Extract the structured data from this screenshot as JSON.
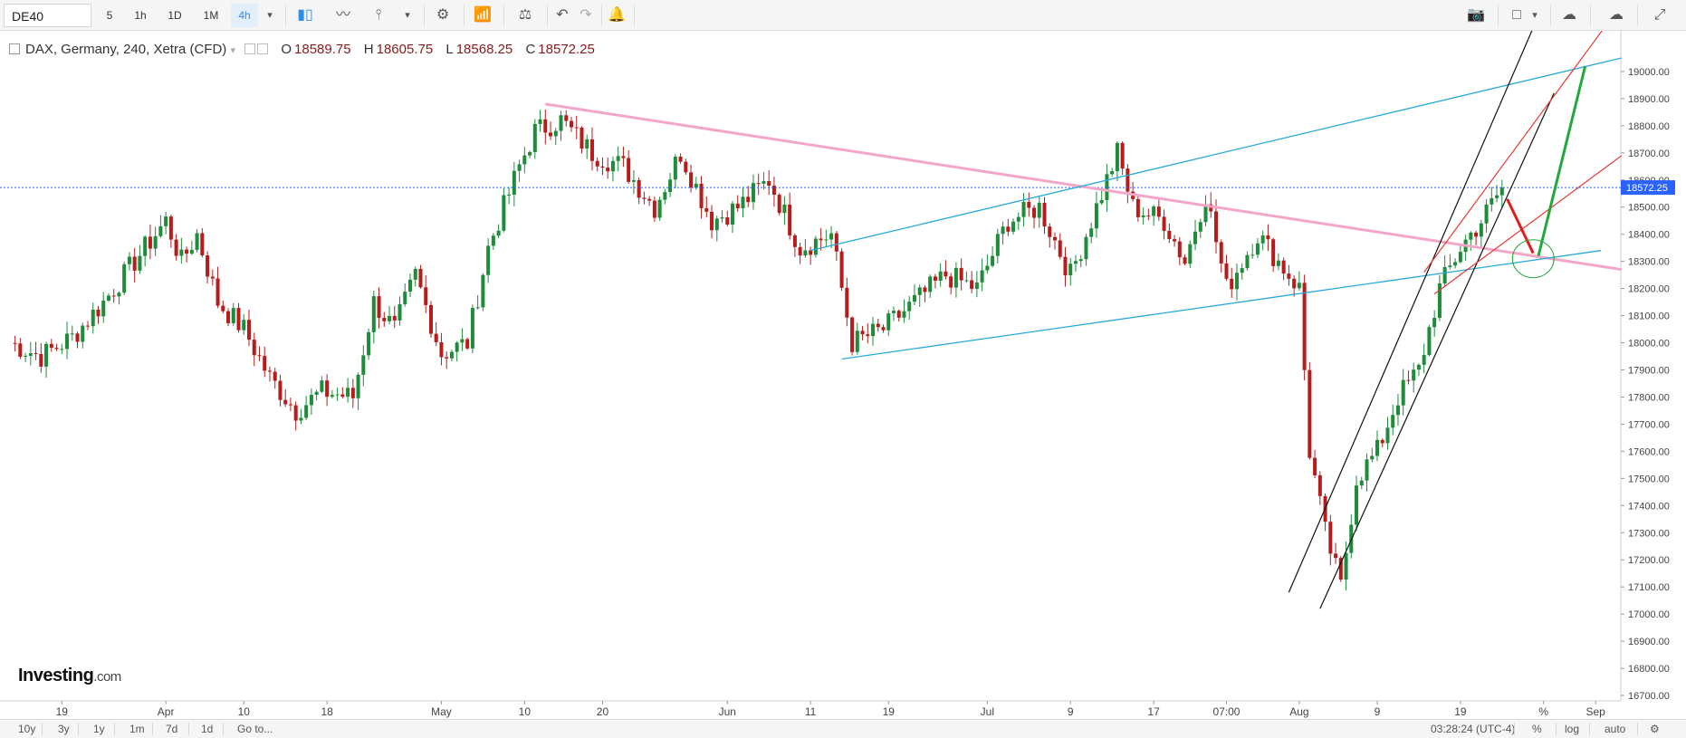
{
  "toolbar": {
    "symbol": "DE40",
    "intervals": [
      "5",
      "1h",
      "1D",
      "1M",
      "4h"
    ],
    "active_interval": "4h"
  },
  "legend": {
    "title": "DAX, Germany, 240, Xetra (CFD)",
    "open_label": "O",
    "open": "18589.75",
    "high_label": "H",
    "high": "18605.75",
    "low_label": "L",
    "low": "18568.25",
    "close_label": "C",
    "close": "18572.25"
  },
  "price_tag": "18572.25",
  "bottom_bar": {
    "ranges": [
      "10y",
      "3y",
      "1y",
      "1m",
      "7d",
      "1d",
      "Go to..."
    ],
    "clock": "03:28:24 (UTC-4)",
    "percent_label": "%",
    "log_label": "log",
    "auto_label": "auto"
  },
  "logo": {
    "main": "Investing",
    "suffix": ".com"
  },
  "colors": {
    "up": "#1e8c3a",
    "down": "#b71c1c",
    "pink_trend": "#f4a6c8",
    "channel_blue": "#29a9d9",
    "black_channel": "#111111",
    "red_channel": "#e53935",
    "last_price": "#2962ff",
    "arrow_red": "#e11d1d",
    "arrow_green": "#22a83a"
  },
  "chart_data": {
    "type": "candlestick",
    "y_ticks": [
      16700,
      16800,
      16900,
      17000,
      17100,
      17200,
      17300,
      17400,
      17500,
      17600,
      17700,
      17800,
      17900,
      18000,
      18100,
      18200,
      18300,
      18400,
      18500,
      18600,
      18700,
      18800,
      18900,
      19000
    ],
    "y_tick_labels": [
      "16700.00",
      "16800.00",
      "16900.00",
      "17000.00",
      "17100.00",
      "17200.00",
      "17300.00",
      "17400.00",
      "17500.00",
      "17600.00",
      "17700.00",
      "17800.00",
      "17900.00",
      "18000.00",
      "18100.00",
      "18200.00",
      "18300.00",
      "18400.00",
      "18500.00",
      "18600.00",
      "18700.00",
      "18800.00",
      "18900.00",
      "19000.00"
    ],
    "ylim": [
      16680,
      19150
    ],
    "x_labels": [
      "19",
      "Apr",
      "10",
      "18",
      "May",
      "10",
      "20",
      "Jun",
      "11",
      "19",
      "Jul",
      "9",
      "17",
      "07:00",
      "Aug",
      "9",
      "19",
      "%",
      "Sep"
    ],
    "x_label_bars": [
      10,
      30,
      45,
      61,
      83,
      99,
      114,
      138,
      154,
      169,
      188,
      204,
      220,
      234,
      248,
      263,
      279,
      295,
      305
    ],
    "last_price": 18572.25,
    "last_bar": 287,
    "n_bars": 310,
    "anchors": [
      [
        0,
        18000
      ],
      [
        6,
        17950
      ],
      [
        12,
        18020
      ],
      [
        18,
        18150
      ],
      [
        24,
        18300
      ],
      [
        30,
        18450
      ],
      [
        33,
        18300
      ],
      [
        36,
        18400
      ],
      [
        40,
        18150
      ],
      [
        45,
        18050
      ],
      [
        50,
        17870
      ],
      [
        55,
        17750
      ],
      [
        60,
        17820
      ],
      [
        66,
        17800
      ],
      [
        70,
        18150
      ],
      [
        74,
        18050
      ],
      [
        78,
        18250
      ],
      [
        83,
        17960
      ],
      [
        88,
        18000
      ],
      [
        92,
        18350
      ],
      [
        98,
        18650
      ],
      [
        101,
        18780
      ],
      [
        106,
        18820
      ],
      [
        112,
        18700
      ],
      [
        118,
        18650
      ],
      [
        124,
        18500
      ],
      [
        129,
        18700
      ],
      [
        135,
        18450
      ],
      [
        140,
        18500
      ],
      [
        146,
        18600
      ],
      [
        152,
        18350
      ],
      [
        158,
        18400
      ],
      [
        162,
        18000
      ],
      [
        168,
        18050
      ],
      [
        174,
        18150
      ],
      [
        180,
        18250
      ],
      [
        186,
        18200
      ],
      [
        192,
        18450
      ],
      [
        198,
        18500
      ],
      [
        204,
        18250
      ],
      [
        210,
        18550
      ],
      [
        213,
        18700
      ],
      [
        216,
        18500
      ],
      [
        222,
        18450
      ],
      [
        226,
        18300
      ],
      [
        230,
        18550
      ],
      [
        234,
        18200
      ],
      [
        240,
        18400
      ],
      [
        244,
        18300
      ],
      [
        248,
        18200
      ],
      [
        250,
        17600
      ],
      [
        253,
        17300
      ],
      [
        256,
        17100
      ],
      [
        259,
        17500
      ],
      [
        263,
        17600
      ],
      [
        267,
        17800
      ],
      [
        271,
        17900
      ],
      [
        275,
        18200
      ],
      [
        279,
        18350
      ],
      [
        283,
        18450
      ],
      [
        287,
        18572
      ]
    ],
    "annotations": {
      "pink_trend": {
        "from": [
          103,
          18880
        ],
        "to": [
          310,
          18270
        ]
      },
      "blue_channel_upper": {
        "from": [
          154,
          18340
        ],
        "to": [
          310,
          19050
        ]
      },
      "blue_channel_lower": {
        "from": [
          160,
          17940
        ],
        "to": [
          306,
          18340
        ]
      },
      "black_channel_left": {
        "from": [
          246,
          17080
        ],
        "to": [
          295,
          19250
        ]
      },
      "black_channel_right": {
        "from": [
          252,
          17020
        ],
        "to": [
          297,
          18920
        ]
      },
      "red_channel_upper": {
        "from": [
          272,
          18260
        ],
        "to": [
          312,
          19300
        ]
      },
      "red_channel_lower": {
        "from": [
          274,
          18180
        ],
        "to": [
          310,
          18690
        ]
      },
      "red_arrow": {
        "from": [
          288,
          18530
        ],
        "to": [
          293,
          18330
        ]
      },
      "green_arrow": {
        "from": [
          294,
          18320
        ],
        "to": [
          303,
          19020
        ]
      },
      "target_ellipse": {
        "center": [
          293,
          18310
        ],
        "rx_bars": 4,
        "ry_value": 70
      }
    }
  }
}
